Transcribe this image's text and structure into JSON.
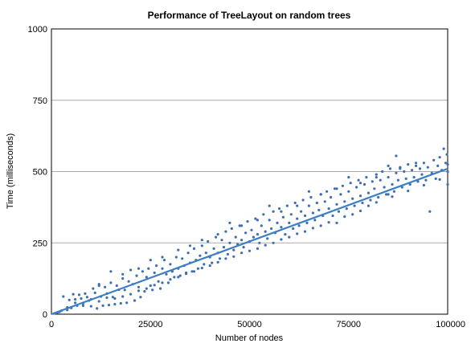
{
  "chart_data": {
    "type": "scatter",
    "title": "Performance of TreeLayout on random trees",
    "xlabel": "Number of nodes",
    "ylabel": "Time (milliseconds)",
    "xlim": [
      0,
      100000
    ],
    "ylim": [
      0,
      1000
    ],
    "x_ticks": [
      "0",
      "25000",
      "50000",
      "75000",
      "100000"
    ],
    "y_ticks": [
      "0",
      "250",
      "500",
      "750",
      "1000"
    ],
    "grid": "horizontal",
    "legend": "none",
    "colors": {
      "points": "#3d6fb3",
      "trend": "#3d7fc4",
      "grid": "#aaaaaa",
      "frame": "#000000"
    },
    "trendline": {
      "x": [
        0,
        100000
      ],
      "y": [
        0,
        510
      ]
    },
    "series": [
      {
        "points": [
          [
            800,
            3
          ],
          [
            1500,
            6
          ],
          [
            2500,
            12
          ],
          [
            3000,
            62
          ],
          [
            4000,
            24
          ],
          [
            4500,
            50
          ],
          [
            5000,
            22
          ],
          [
            5500,
            70
          ],
          [
            6000,
            52
          ],
          [
            6500,
            30
          ],
          [
            7000,
            68
          ],
          [
            7500,
            55
          ],
          [
            8000,
            38
          ],
          [
            8500,
            72
          ],
          [
            9000,
            60
          ],
          [
            9500,
            48
          ],
          [
            10000,
            28
          ],
          [
            10500,
            90
          ],
          [
            11000,
            75
          ],
          [
            11500,
            20
          ],
          [
            12000,
            100
          ],
          [
            12500,
            62
          ],
          [
            13000,
            30
          ],
          [
            13500,
            95
          ],
          [
            14000,
            72
          ],
          [
            14500,
            32
          ],
          [
            15000,
            110
          ],
          [
            15500,
            60
          ],
          [
            16000,
            35
          ],
          [
            16500,
            100
          ],
          [
            17000,
            86
          ],
          [
            17500,
            38
          ],
          [
            18000,
            125
          ],
          [
            18500,
            85
          ],
          [
            19000,
            40
          ],
          [
            19500,
            115
          ],
          [
            20000,
            155
          ],
          [
            20500,
            105
          ],
          [
            21000,
            48
          ],
          [
            21500,
            135
          ],
          [
            22000,
            95
          ],
          [
            22500,
            60
          ],
          [
            23000,
            150
          ],
          [
            23500,
            80
          ],
          [
            24000,
            130
          ],
          [
            24500,
            160
          ],
          [
            25000,
            100
          ],
          [
            25500,
            85
          ],
          [
            26000,
            145
          ],
          [
            26500,
            170
          ],
          [
            27000,
            115
          ],
          [
            27500,
            90
          ],
          [
            28000,
            160
          ],
          [
            28500,
            190
          ],
          [
            29000,
            140
          ],
          [
            29500,
            110
          ],
          [
            30000,
            175
          ],
          [
            30500,
            150
          ],
          [
            31000,
            130
          ],
          [
            31500,
            200
          ],
          [
            32000,
            160
          ],
          [
            32500,
            135
          ],
          [
            33000,
            195
          ],
          [
            33500,
            170
          ],
          [
            34000,
            145
          ],
          [
            34500,
            215
          ],
          [
            35000,
            180
          ],
          [
            35500,
            150
          ],
          [
            36000,
            230
          ],
          [
            36500,
            190
          ],
          [
            37000,
            160
          ],
          [
            37500,
            205
          ],
          [
            38000,
            240
          ],
          [
            38500,
            175
          ],
          [
            39000,
            215
          ],
          [
            39500,
            255
          ],
          [
            40000,
            200
          ],
          [
            40500,
            180
          ],
          [
            41000,
            230
          ],
          [
            41500,
            270
          ],
          [
            42000,
            215
          ],
          [
            42500,
            195
          ],
          [
            43000,
            260
          ],
          [
            43500,
            235
          ],
          [
            44000,
            290
          ],
          [
            44500,
            210
          ],
          [
            45000,
            250
          ],
          [
            45500,
            300
          ],
          [
            46000,
            225
          ],
          [
            46500,
            270
          ],
          [
            47000,
            245
          ],
          [
            47500,
            310
          ],
          [
            48000,
            260
          ],
          [
            48500,
            235
          ],
          [
            49000,
            285
          ],
          [
            49500,
            325
          ],
          [
            50000,
            255
          ],
          [
            50500,
            295
          ],
          [
            51000,
            270
          ],
          [
            51500,
            335
          ],
          [
            52000,
            280
          ],
          [
            52500,
            250
          ],
          [
            53000,
            310
          ],
          [
            53500,
            350
          ],
          [
            54000,
            290
          ],
          [
            54500,
            265
          ],
          [
            55000,
            330
          ],
          [
            55500,
            300
          ],
          [
            56000,
            360
          ],
          [
            56500,
            285
          ],
          [
            57000,
            320
          ],
          [
            57500,
            370
          ],
          [
            58000,
            305
          ],
          [
            58500,
            340
          ],
          [
            59000,
            280
          ],
          [
            59500,
            380
          ],
          [
            60000,
            320
          ],
          [
            60500,
            350
          ],
          [
            61000,
            300
          ],
          [
            61500,
            390
          ],
          [
            62000,
            335
          ],
          [
            62500,
            310
          ],
          [
            63000,
            360
          ],
          [
            63500,
            400
          ],
          [
            64000,
            345
          ],
          [
            64500,
            320
          ],
          [
            65000,
            380
          ],
          [
            65500,
            410
          ],
          [
            66000,
            355
          ],
          [
            66500,
            330
          ],
          [
            67000,
            390
          ],
          [
            67500,
            365
          ],
          [
            68000,
            420
          ],
          [
            68500,
            345
          ],
          [
            69000,
            395
          ],
          [
            69500,
            430
          ],
          [
            70000,
            370
          ],
          [
            70500,
            410
          ],
          [
            71000,
            345
          ],
          [
            71500,
            440
          ],
          [
            72000,
            385
          ],
          [
            72500,
            360
          ],
          [
            73000,
            420
          ],
          [
            73500,
            450
          ],
          [
            74000,
            395
          ],
          [
            74500,
            370
          ],
          [
            75000,
            430
          ],
          [
            75500,
            460
          ],
          [
            76000,
            405
          ],
          [
            76500,
            380
          ],
          [
            77000,
            445
          ],
          [
            77500,
            470
          ],
          [
            78000,
            415
          ],
          [
            78500,
            390
          ],
          [
            79000,
            455
          ],
          [
            79500,
            480
          ],
          [
            80000,
            425
          ],
          [
            80500,
            400
          ],
          [
            81000,
            465
          ],
          [
            81500,
            440
          ],
          [
            82000,
            490
          ],
          [
            82500,
            410
          ],
          [
            83000,
            470
          ],
          [
            83500,
            500
          ],
          [
            84000,
            445
          ],
          [
            84500,
            420
          ],
          [
            85000,
            480
          ],
          [
            85500,
            510
          ],
          [
            86000,
            455
          ],
          [
            86500,
            430
          ],
          [
            87000,
            495
          ],
          [
            87500,
            470
          ],
          [
            88000,
            515
          ],
          [
            88500,
            445
          ],
          [
            89000,
            500
          ],
          [
            89500,
            475
          ],
          [
            90000,
            525
          ],
          [
            90500,
            455
          ],
          [
            91000,
            505
          ],
          [
            91500,
            480
          ],
          [
            92000,
            520
          ],
          [
            92500,
            465
          ],
          [
            93000,
            510
          ],
          [
            93500,
            490
          ],
          [
            94000,
            530
          ],
          [
            94500,
            470
          ],
          [
            95000,
            515
          ],
          [
            95500,
            360
          ],
          [
            96000,
            495
          ],
          [
            96500,
            540
          ],
          [
            97000,
            475
          ],
          [
            97500,
            520
          ],
          [
            98000,
            550
          ],
          [
            98500,
            505
          ],
          [
            99000,
            580
          ],
          [
            99500,
            530
          ],
          [
            100000,
            500
          ],
          [
            100000,
            455
          ],
          [
            100000,
            525
          ],
          [
            99800,
            560
          ],
          [
            87000,
            555
          ],
          [
            85000,
            420
          ],
          [
            80000,
            380
          ],
          [
            76000,
            350
          ],
          [
            72000,
            320
          ],
          [
            68000,
            310
          ],
          [
            64000,
            290
          ],
          [
            60000,
            270
          ],
          [
            56000,
            250
          ],
          [
            52000,
            230
          ],
          [
            48000,
            215
          ],
          [
            44000,
            195
          ],
          [
            40000,
            170
          ],
          [
            36000,
            150
          ],
          [
            32000,
            130
          ],
          [
            28000,
            110
          ],
          [
            24000,
            90
          ],
          [
            20000,
            70
          ],
          [
            16000,
            55
          ],
          [
            12000,
            45
          ],
          [
            8000,
            30
          ],
          [
            4000,
            15
          ],
          [
            2000,
            8
          ],
          [
            6000,
            40
          ],
          [
            10000,
            52
          ],
          [
            14000,
            58
          ],
          [
            18000,
            62
          ],
          [
            22000,
            82
          ],
          [
            26000,
            102
          ],
          [
            30000,
            122
          ],
          [
            34000,
            142
          ],
          [
            38000,
            162
          ],
          [
            42000,
            182
          ],
          [
            46000,
            202
          ],
          [
            50000,
            222
          ],
          [
            54000,
            242
          ],
          [
            58000,
            262
          ],
          [
            62000,
            282
          ],
          [
            66000,
            302
          ],
          [
            70000,
            322
          ],
          [
            74000,
            342
          ],
          [
            78000,
            362
          ],
          [
            82000,
            392
          ],
          [
            86000,
            412
          ],
          [
            90000,
            432
          ],
          [
            94000,
            452
          ],
          [
            98000,
            472
          ],
          [
            35000,
            240
          ],
          [
            45000,
            320
          ],
          [
            55000,
            380
          ],
          [
            65000,
            430
          ],
          [
            75000,
            480
          ],
          [
            85000,
            520
          ],
          [
            15000,
            150
          ],
          [
            25000,
            190
          ],
          [
            12000,
            105
          ],
          [
            18000,
            140
          ],
          [
            22000,
            160
          ],
          [
            28000,
            200
          ],
          [
            32000,
            225
          ],
          [
            38000,
            260
          ],
          [
            42000,
            280
          ],
          [
            48000,
            310
          ],
          [
            52000,
            330
          ],
          [
            58000,
            360
          ],
          [
            62000,
            380
          ],
          [
            68000,
            420
          ],
          [
            72000,
            440
          ],
          [
            78000,
            460
          ],
          [
            82000,
            480
          ],
          [
            88000,
            510
          ],
          [
            92000,
            530
          ]
        ]
      }
    ]
  }
}
